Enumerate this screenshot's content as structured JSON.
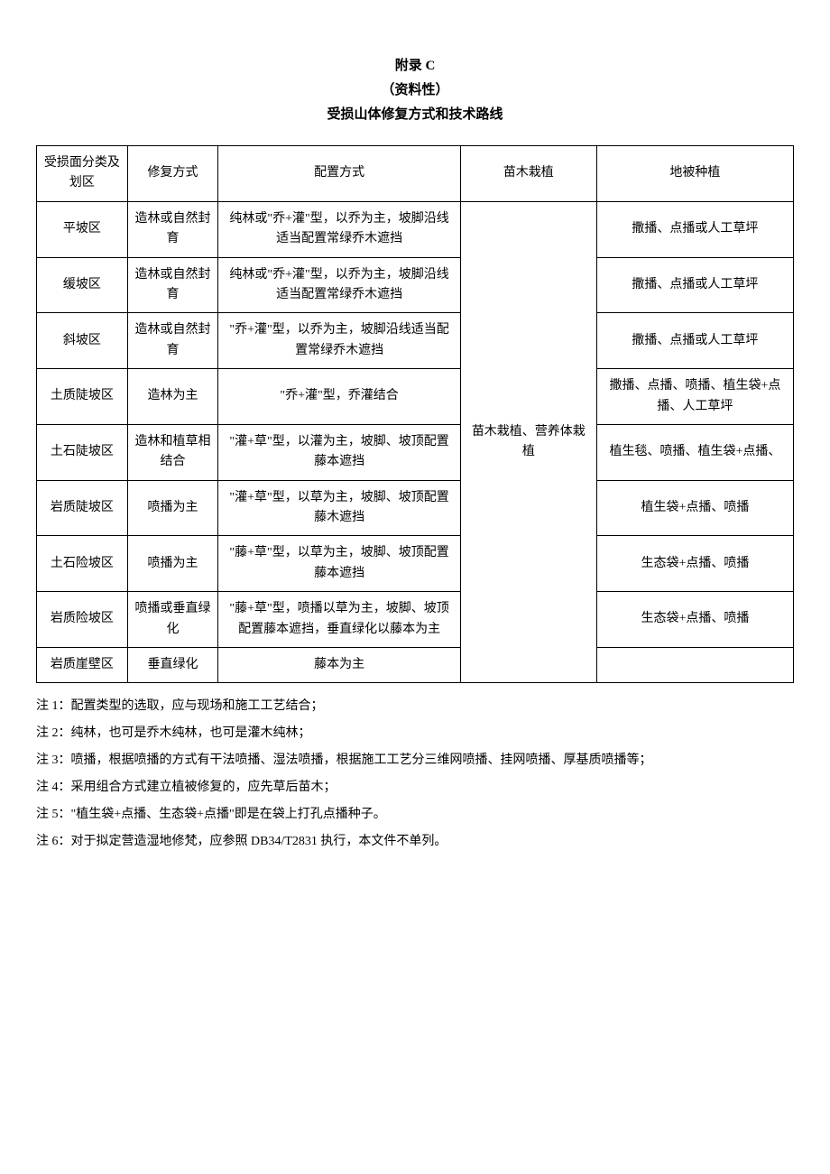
{
  "header": {
    "line1": "附录 C",
    "line2": "（资料性）",
    "line3": "受损山体修复方式和技术路线"
  },
  "table": {
    "columns": {
      "c1": "受损面分类及划区",
      "c2": "修复方式",
      "c3": "配置方式",
      "c4": "苗木栽植",
      "c5": "地被种植"
    },
    "merged_c4": "苗木栽植、营养体栽植",
    "rows": [
      {
        "c1": "平坡区",
        "c2": "造林或自然封育",
        "c3": "纯林或\"乔+灌\"型，以乔为主，坡脚沿线适当配置常绿乔木遮挡",
        "c5": "撒播、点播或人工草坪"
      },
      {
        "c1": "缓坡区",
        "c2": "造林或自然封育",
        "c3": "纯林或\"乔+灌\"型，以乔为主，坡脚沿线适当配置常绿乔木遮挡",
        "c5": "撒播、点播或人工草坪"
      },
      {
        "c1": "斜坡区",
        "c2": "造林或自然封育",
        "c3": "\"乔+灌\"型，以乔为主，坡脚沿线适当配置常绿乔木遮挡",
        "c5": "撒播、点播或人工草坪"
      },
      {
        "c1": "土质陡坡区",
        "c2": "造林为主",
        "c3": "\"乔+灌\"型，乔灌结合",
        "c5": "撒播、点播、喷播、植生袋+点播、人工草坪"
      },
      {
        "c1": "土石陡坡区",
        "c2": "造林和植草相结合",
        "c3": "\"灌+草\"型，以灌为主，坡脚、坡顶配置藤本遮挡",
        "c5": "植生毯、喷播、植生袋+点播、"
      },
      {
        "c1": "岩质陡坡区",
        "c2": "喷播为主",
        "c3": "\"灌+草\"型，以草为主，坡脚、坡顶配置藤木遮挡",
        "c5": "植生袋+点播、喷播"
      },
      {
        "c1": "土石险坡区",
        "c2": "喷播为主",
        "c3": "\"藤+草\"型，以草为主，坡脚、坡顶配置藤本遮挡",
        "c5": "生态袋+点播、喷播"
      },
      {
        "c1": "岩质险坡区",
        "c2": "喷播或垂直绿化",
        "c3": "\"藤+草\"型，喷播以草为主，坡脚、坡顶配置藤本遮挡，垂直绿化以藤本为主",
        "c5": "生态袋+点播、喷播"
      },
      {
        "c1": "岩质崖壁区",
        "c2": "垂直绿化",
        "c3": "藤本为主",
        "c5": ""
      }
    ]
  },
  "notes": {
    "n1": "注 1：配置类型的选取，应与现场和施工工艺结合；",
    "n2": "注 2：纯林，也可是乔木纯林，也可是灌木纯林；",
    "n3": "注 3：喷播，根据喷播的方式有干法喷播、湿法喷播，根据施工工艺分三维网喷播、挂网喷播、厚基质喷播等；",
    "n4": "注 4：采用组合方式建立植被修复的，应先草后苗木；",
    "n5": "注 5：\"植生袋+点播、生态袋+点播\"即是在袋上打孔点播种子。",
    "n6": "注 6：对于拟定营造湿地修梵，应参照 DB34/T2831 执行，本文件不单列。"
  }
}
